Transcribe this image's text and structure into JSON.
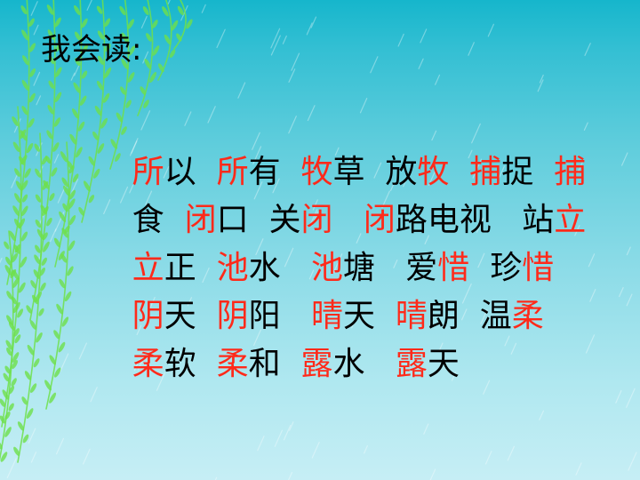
{
  "slide": {
    "title": "我会读:",
    "lines": [
      {
        "segments": [
          {
            "t": "所",
            "red": true
          },
          {
            "t": "以  ",
            "red": false
          },
          {
            "t": "所",
            "red": true
          },
          {
            "t": "有  ",
            "red": false
          },
          {
            "t": "牧",
            "red": true
          },
          {
            "t": "草  放",
            "red": false
          },
          {
            "t": "牧",
            "red": true
          },
          {
            "t": "  ",
            "red": false
          },
          {
            "t": "捕",
            "red": true
          },
          {
            "t": "捉  ",
            "red": false
          },
          {
            "t": "捕",
            "red": true
          }
        ]
      },
      {
        "segments": [
          {
            "t": "食  ",
            "red": false
          },
          {
            "t": "闭",
            "red": true
          },
          {
            "t": "口  关",
            "red": false
          },
          {
            "t": "闭",
            "red": true
          },
          {
            "t": "   ",
            "red": false
          },
          {
            "t": "闭",
            "red": true
          },
          {
            "t": "路电视   站",
            "red": false
          },
          {
            "t": "立",
            "red": true
          }
        ]
      },
      {
        "segments": [
          {
            "t": "立",
            "red": true
          },
          {
            "t": "正  ",
            "red": false
          },
          {
            "t": "池",
            "red": true
          },
          {
            "t": "水   ",
            "red": false
          },
          {
            "t": "池",
            "red": true
          },
          {
            "t": "塘   爱",
            "red": false
          },
          {
            "t": "惜",
            "red": true
          },
          {
            "t": "  珍",
            "red": false
          },
          {
            "t": "惜",
            "red": true
          }
        ]
      },
      {
        "segments": [
          {
            "t": "阴",
            "red": true
          },
          {
            "t": "天  ",
            "red": false
          },
          {
            "t": "阴",
            "red": true
          },
          {
            "t": "阳   ",
            "red": false
          },
          {
            "t": "晴",
            "red": true
          },
          {
            "t": "天  ",
            "red": false
          },
          {
            "t": "晴",
            "red": true
          },
          {
            "t": "朗  温",
            "red": false
          },
          {
            "t": "柔",
            "red": true
          }
        ]
      },
      {
        "segments": [
          {
            "t": "柔",
            "red": true
          },
          {
            "t": "软  ",
            "red": false
          },
          {
            "t": "柔",
            "red": true
          },
          {
            "t": "和  ",
            "red": false
          },
          {
            "t": "露",
            "red": true
          },
          {
            "t": "水   ",
            "red": false
          },
          {
            "t": "露",
            "red": true
          },
          {
            "t": "天",
            "red": false
          }
        ]
      }
    ]
  },
  "colors": {
    "highlight": "#ff2a1a",
    "text": "#000000",
    "sky_top": "#16b6cc",
    "sky_bottom": "#c6eef5",
    "willow": "#6ee04a"
  },
  "icons": [
    "willow-branches",
    "rain-streaks"
  ]
}
